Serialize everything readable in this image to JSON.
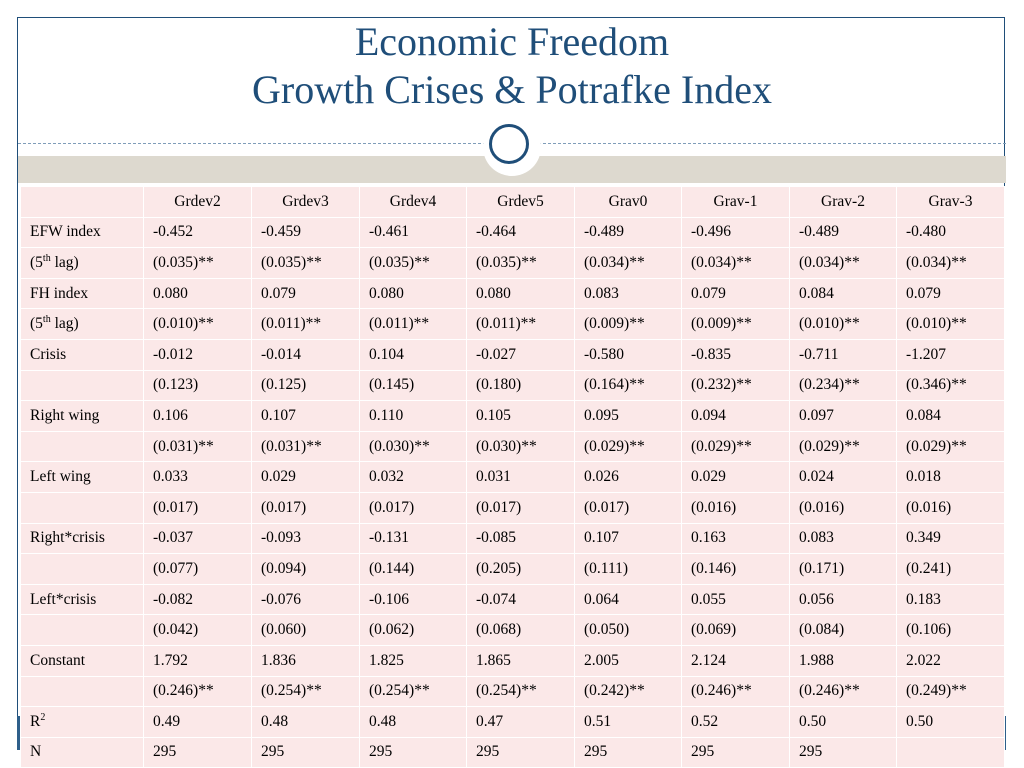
{
  "title": {
    "line1": "Economic Freedom",
    "line2": "Growth Crises & Potrafke Index"
  },
  "table": {
    "columns": [
      "",
      "Grdev2",
      "Grdev3",
      "Grdev4",
      "Grdev5",
      "Grav0",
      "Grav-1",
      "Grav-2",
      "Grav-3"
    ],
    "rows": [
      [
        "EFW index",
        "-0.452",
        "-0.459",
        "-0.461",
        "-0.464",
        "-0.489",
        "-0.496",
        "-0.489",
        "-0.480"
      ],
      [
        "",
        "(0.035)**",
        "(0.035)**",
        "(0.035)**",
        "(0.035)**",
        "(0.034)**",
        "(0.034)**",
        "(0.034)**",
        "(0.034)**"
      ],
      [
        "FH index",
        "0.080",
        "0.079",
        "0.080",
        "0.080",
        "0.083",
        "0.079",
        "0.084",
        "0.079"
      ],
      [
        "",
        "(0.010)**",
        "(0.011)**",
        "(0.011)**",
        "(0.011)**",
        "(0.009)**",
        "(0.009)**",
        "(0.010)**",
        "(0.010)**"
      ],
      [
        "Crisis",
        "-0.012",
        "-0.014",
        "0.104",
        "-0.027",
        "-0.580",
        "-0.835",
        "-0.711",
        "-1.207"
      ],
      [
        "",
        "(0.123)",
        "(0.125)",
        "(0.145)",
        "(0.180)",
        "(0.164)**",
        "(0.232)**",
        "(0.234)**",
        "(0.346)**"
      ],
      [
        "Right wing",
        "0.106",
        "0.107",
        "0.110",
        "0.105",
        "0.095",
        "0.094",
        "0.097",
        "0.084"
      ],
      [
        "",
        "(0.031)**",
        "(0.031)**",
        "(0.030)**",
        "(0.030)**",
        "(0.029)**",
        "(0.029)**",
        "(0.029)**",
        "(0.029)**"
      ],
      [
        "Left wing",
        "0.033",
        "0.029",
        "0.032",
        "0.031",
        "0.026",
        "0.029",
        "0.024",
        "0.018"
      ],
      [
        "",
        "(0.017)",
        "(0.017)",
        "(0.017)",
        "(0.017)",
        "(0.017)",
        "(0.016)",
        "(0.016)",
        "(0.016)"
      ],
      [
        "Right*crisis",
        "-0.037",
        "-0.093",
        "-0.131",
        "-0.085",
        "0.107",
        "0.163",
        "0.083",
        "0.349"
      ],
      [
        "",
        "(0.077)",
        "(0.094)",
        "(0.144)",
        "(0.205)",
        "(0.111)",
        "(0.146)",
        "(0.171)",
        "(0.241)"
      ],
      [
        "Left*crisis",
        "-0.082",
        "-0.076",
        "-0.106",
        "-0.074",
        "0.064",
        "0.055",
        "0.056",
        "0.183"
      ],
      [
        "",
        "(0.042)",
        "(0.060)",
        "(0.062)",
        "(0.068)",
        "(0.050)",
        "(0.069)",
        "(0.084)",
        "(0.106)"
      ],
      [
        "Constant",
        "1.792",
        "1.836",
        "1.825",
        "1.865",
        "2.005",
        "2.124",
        "1.988",
        "2.022"
      ],
      [
        "",
        "(0.246)**",
        "(0.254)**",
        "(0.254)**",
        "(0.254)**",
        "(0.242)**",
        "(0.246)**",
        "(0.246)**",
        "(0.249)**"
      ],
      [
        "",
        "0.49",
        "0.48",
        "0.48",
        "0.47",
        "0.51",
        "0.52",
        "0.50",
        "0.50"
      ],
      [
        "N",
        "295",
        "295",
        "295",
        "295",
        "295",
        "295",
        "295",
        ""
      ]
    ],
    "lag_label": {
      "pre": " (5",
      "sup": "th",
      "post": " lag)"
    },
    "r2_label": {
      "base": "R",
      "sup": "2"
    }
  }
}
